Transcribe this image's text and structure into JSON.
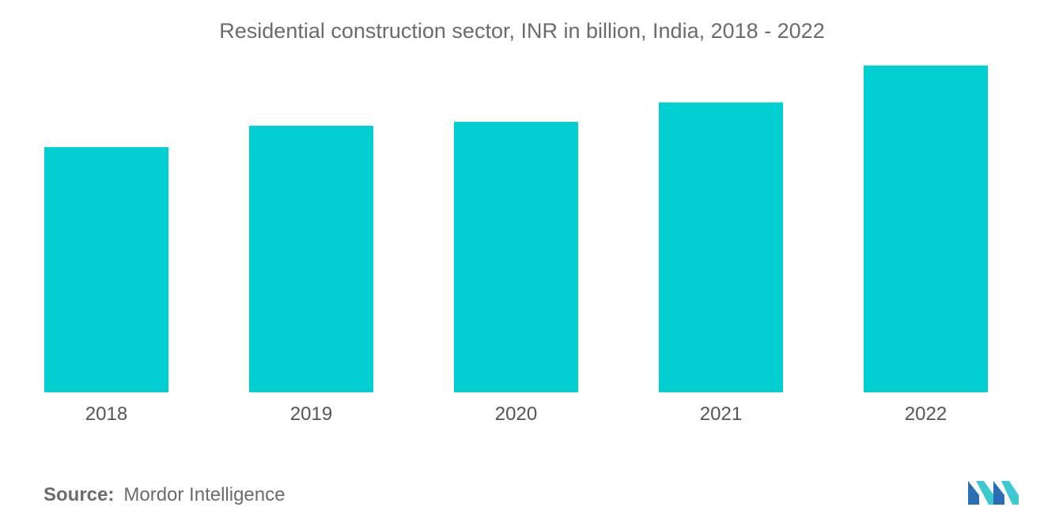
{
  "chart_data": {
    "type": "bar",
    "title": "Residential construction sector, INR in billion, India, 2018 - 2022",
    "categories": [
      "2018",
      "2019",
      "2020",
      "2021",
      "2022"
    ],
    "values": [
      6.3,
      6.85,
      6.95,
      7.45,
      8.4
    ],
    "xlabel": "",
    "ylabel": "",
    "ylim": [
      0,
      10
    ],
    "grid": false,
    "legend": "none",
    "bar_color": "#00CED1"
  },
  "footer": {
    "source_label": "Source:",
    "source_value": "Mordor Intelligence"
  },
  "logo": {
    "icon": "mordor-intelligence-logo-icon",
    "colors": [
      "#2A6FB3",
      "#3EC8D0"
    ]
  }
}
